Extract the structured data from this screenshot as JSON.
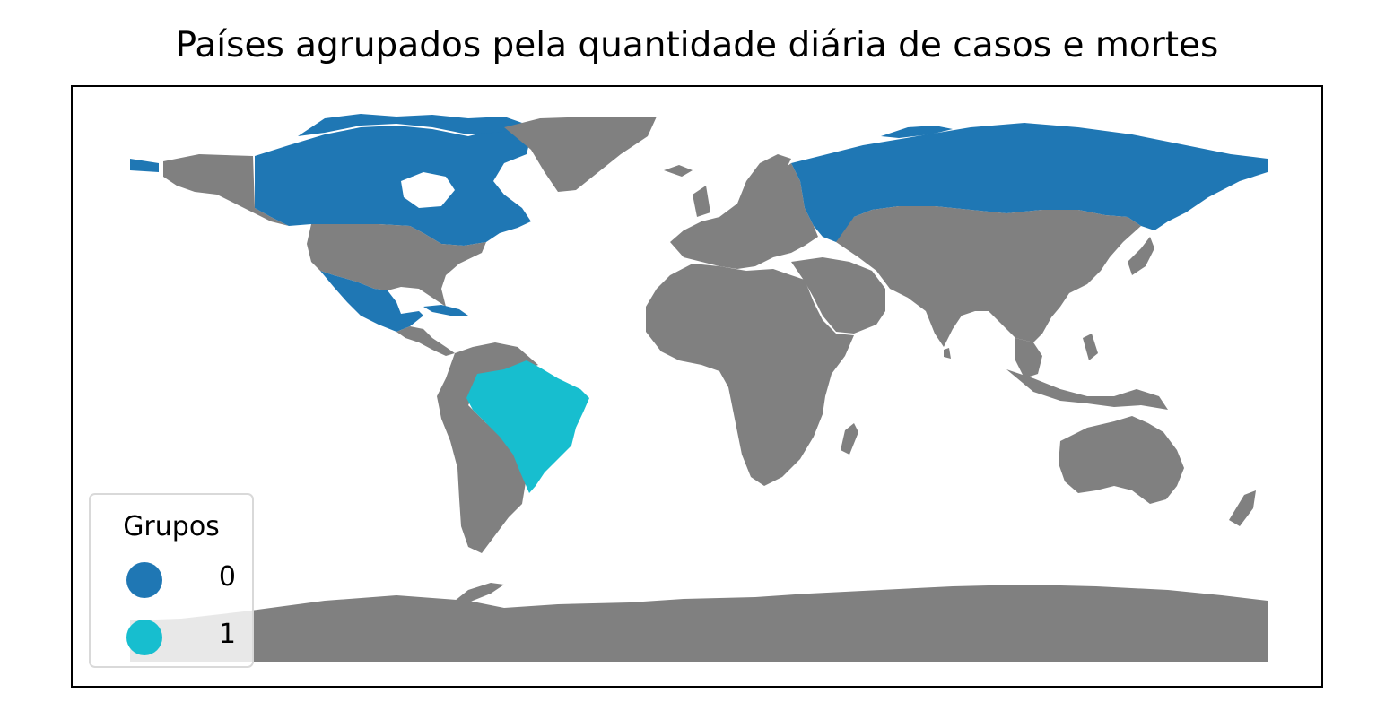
{
  "title": "Países agrupados pela quantidade diária de casos e mortes",
  "colors": {
    "default_land": "#808080",
    "group_0": "#1f77b4",
    "group_1": "#17becf",
    "frame": "#000000"
  },
  "legend": {
    "title": "Grupos",
    "items": [
      {
        "label": "0",
        "color": "#1f77b4"
      },
      {
        "label": "1",
        "color": "#17becf"
      }
    ]
  },
  "map": {
    "projection": "plate-carree",
    "highlighted_regions": [
      {
        "name": "Canada",
        "group": "0"
      },
      {
        "name": "Mexico",
        "group": "0"
      },
      {
        "name": "Cuba",
        "group": "0"
      },
      {
        "name": "Russia",
        "group": "0"
      },
      {
        "name": "Brazil",
        "group": "1"
      }
    ]
  }
}
